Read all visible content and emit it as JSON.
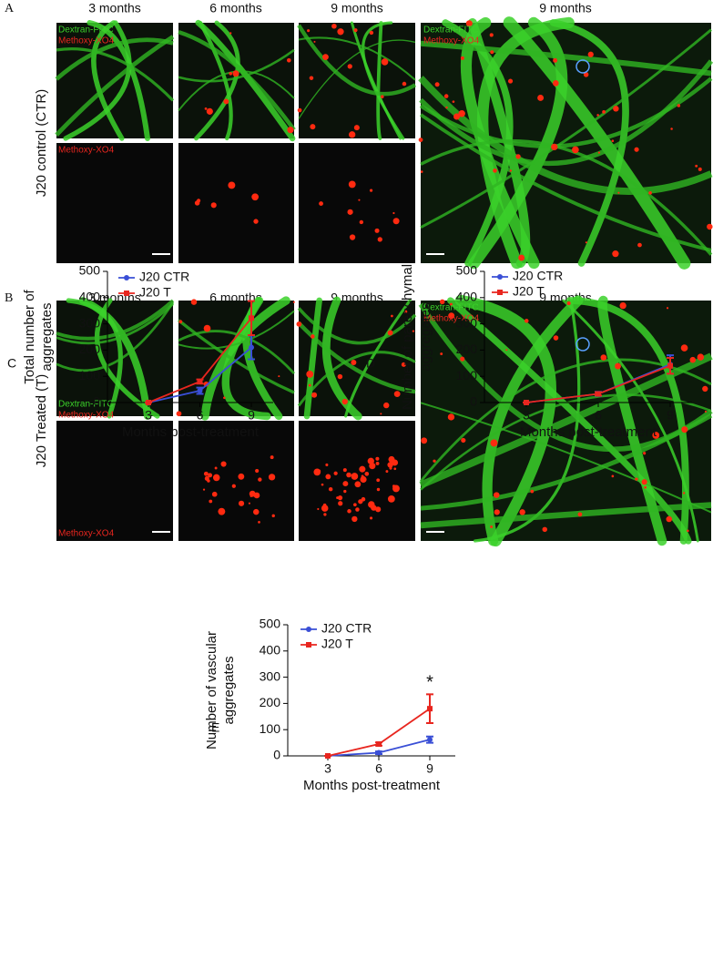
{
  "figure": {
    "stain_labels": {
      "dextran": "Dextran-FITC",
      "methoxy": "Methoxy-XO4"
    },
    "panels": [
      {
        "label": "A",
        "row_label": "J20 control (CTR)",
        "column_headers": [
          "3 months",
          "6 months",
          "9 months",
          "9 months"
        ]
      },
      {
        "label": "B",
        "row_label": "J20 Treated (T)",
        "column_headers": [
          "3 months",
          "6 months",
          "9 months",
          "9 months"
        ]
      }
    ]
  },
  "chart_data": [
    {
      "type": "line",
      "panel_label": "C",
      "ylabel": [
        "Total number of",
        "aggregates"
      ],
      "xlabel": "Months post-treatment",
      "categories": [
        "3",
        "6",
        "9"
      ],
      "ylim": [
        0,
        500
      ],
      "yticks": [
        0,
        100,
        200,
        300,
        400,
        500
      ],
      "series": [
        {
          "name": "J20 CTR",
          "color": "#3a4fd6",
          "values": [
            0,
            45,
            210
          ],
          "errors": [
            0,
            12,
            45
          ]
        },
        {
          "name": "J20 T",
          "color": "#e8261f",
          "values": [
            0,
            80,
            322
          ],
          "errors": [
            0,
            8,
            65
          ]
        }
      ]
    },
    {
      "type": "line",
      "panel_label": "D",
      "ylabel": [
        "Number of parenchymal",
        "aggregates"
      ],
      "xlabel": "Months post-treatment",
      "categories": [
        "3",
        "6",
        "9"
      ],
      "ylim": [
        0,
        500
      ],
      "yticks": [
        0,
        100,
        200,
        300,
        400,
        500
      ],
      "series": [
        {
          "name": "J20 CTR",
          "color": "#3a4fd6",
          "values": [
            0,
            33,
            145
          ],
          "errors": [
            0,
            8,
            35
          ]
        },
        {
          "name": "J20 T",
          "color": "#e8261f",
          "values": [
            0,
            33,
            140
          ],
          "errors": [
            0,
            6,
            30
          ]
        }
      ]
    },
    {
      "type": "line",
      "panel_label": "E",
      "ylabel": [
        "Number of vascular",
        "aggregates"
      ],
      "xlabel": "Months post-treatment",
      "categories": [
        "3",
        "6",
        "9"
      ],
      "ylim": [
        0,
        500
      ],
      "yticks": [
        0,
        100,
        200,
        300,
        400,
        500
      ],
      "annotation": "*",
      "series": [
        {
          "name": "J20 CTR",
          "color": "#3a4fd6",
          "values": [
            0,
            12,
            62
          ],
          "errors": [
            0,
            5,
            12
          ]
        },
        {
          "name": "J20 T",
          "color": "#e8261f",
          "values": [
            0,
            45,
            180
          ],
          "errors": [
            0,
            6,
            55
          ]
        }
      ]
    }
  ]
}
